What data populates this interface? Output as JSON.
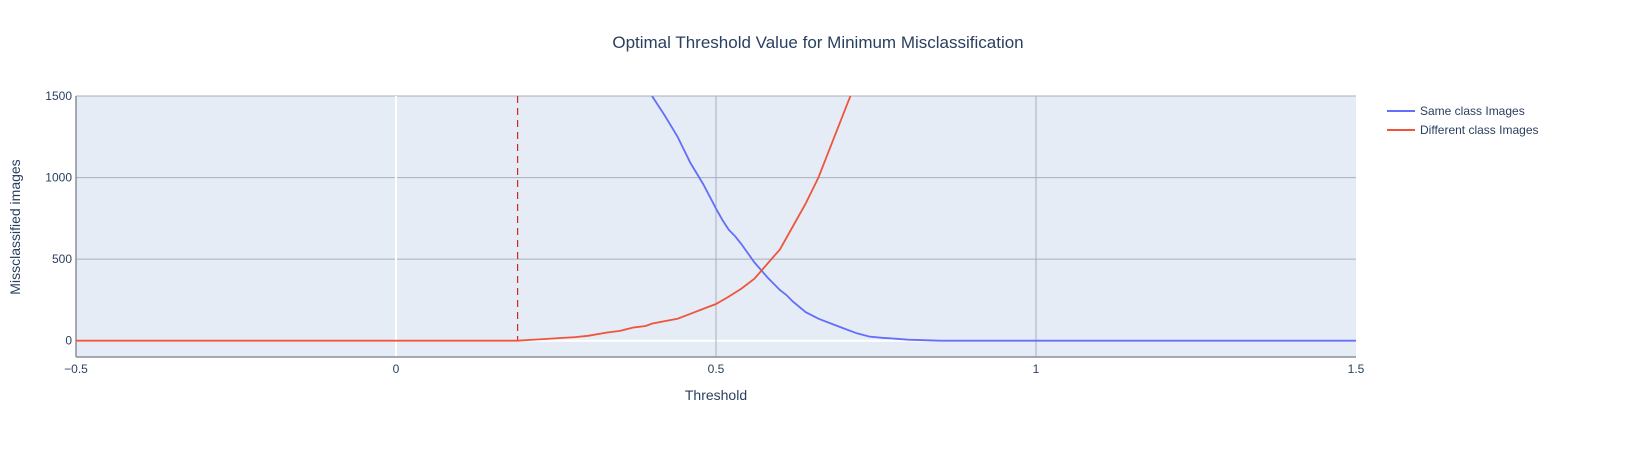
{
  "chart_data": {
    "type": "line",
    "title": "Optimal Threshold Value for Minimum Misclassification",
    "xlabel": "Threshold",
    "ylabel": "Missclassified images",
    "xlim": [
      -0.5,
      1.5
    ],
    "ylim": [
      -100,
      1500
    ],
    "x_ticks": [
      -0.5,
      0,
      0.5,
      1,
      1.5
    ],
    "x_tick_labels": [
      "−0.5",
      "0",
      "0.5",
      "1",
      "1.5"
    ],
    "y_ticks": [
      0,
      500,
      1000,
      1500
    ],
    "y_tick_labels": [
      "0",
      "500",
      "1000",
      "1500"
    ],
    "grid": true,
    "legend_position": "top-right",
    "plot_bgcolor": "#e5ecf6",
    "threshold_line": {
      "x": 0.19,
      "color": "#d62728",
      "style": "dashed"
    },
    "series": [
      {
        "name": "Same class Images",
        "color": "#636efa",
        "points": [
          [
            0.4,
            1500
          ],
          [
            0.42,
            1380
          ],
          [
            0.44,
            1250
          ],
          [
            0.46,
            1090
          ],
          [
            0.48,
            960
          ],
          [
            0.5,
            810
          ],
          [
            0.51,
            740
          ],
          [
            0.52,
            680
          ],
          [
            0.53,
            640
          ],
          [
            0.54,
            590
          ],
          [
            0.56,
            480
          ],
          [
            0.58,
            390
          ],
          [
            0.6,
            310
          ],
          [
            0.61,
            280
          ],
          [
            0.62,
            240
          ],
          [
            0.64,
            175
          ],
          [
            0.66,
            135
          ],
          [
            0.68,
            105
          ],
          [
            0.7,
            75
          ],
          [
            0.72,
            45
          ],
          [
            0.74,
            25
          ],
          [
            0.76,
            18
          ],
          [
            0.78,
            12
          ],
          [
            0.8,
            6
          ],
          [
            0.85,
            0
          ],
          [
            1.0,
            0
          ],
          [
            1.5,
            0
          ]
        ]
      },
      {
        "name": "Different class Images",
        "color": "#ef553b",
        "points": [
          [
            -0.5,
            0
          ],
          [
            0.19,
            0
          ],
          [
            0.21,
            5
          ],
          [
            0.23,
            10
          ],
          [
            0.26,
            17
          ],
          [
            0.28,
            22
          ],
          [
            0.3,
            30
          ],
          [
            0.33,
            50
          ],
          [
            0.35,
            60
          ],
          [
            0.37,
            80
          ],
          [
            0.39,
            90
          ],
          [
            0.4,
            105
          ],
          [
            0.42,
            120
          ],
          [
            0.44,
            135
          ],
          [
            0.46,
            165
          ],
          [
            0.48,
            195
          ],
          [
            0.5,
            225
          ],
          [
            0.52,
            270
          ],
          [
            0.54,
            320
          ],
          [
            0.56,
            380
          ],
          [
            0.58,
            470
          ],
          [
            0.6,
            560
          ],
          [
            0.62,
            700
          ],
          [
            0.64,
            840
          ],
          [
            0.66,
            1000
          ],
          [
            0.68,
            1200
          ],
          [
            0.7,
            1400
          ],
          [
            0.71,
            1500
          ]
        ]
      }
    ]
  }
}
